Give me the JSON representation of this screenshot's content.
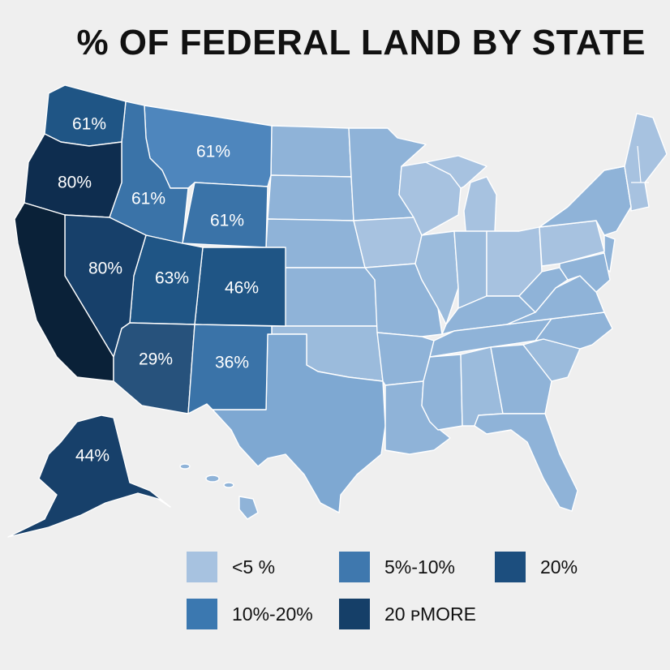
{
  "title": "% OF FEDERAL LAND BY STATE",
  "colors": {
    "lightest": "#a7c2e0",
    "light": "#8fb3d8",
    "medium": "#4e86bd",
    "medium_dark": "#3a73a8",
    "dark": "#1f5585",
    "darker": "#17406a",
    "darkest": "#0e2d4f",
    "black_blue": "#0a2138",
    "arizona": "#27527c"
  },
  "labels": {
    "washington": "61%",
    "oregon": "80%",
    "montana": "61%",
    "idaho": "61%",
    "wyoming": "61%",
    "nevada": "80%",
    "utah": "63%",
    "colorado": "46%",
    "arizona": "29%",
    "new_mexico": "36%",
    "alaska": "44%"
  },
  "legend": [
    {
      "label": "<5 %",
      "color": "#a7c2e0"
    },
    {
      "label": "5%-10%",
      "color": "#3f78ae"
    },
    {
      "label": "20%",
      "color": "#1c4e7e"
    },
    {
      "label": "10%-20%",
      "color": "#3b78b0"
    },
    {
      "label": "20 ᴘMORE",
      "color": "#153f68"
    }
  ]
}
